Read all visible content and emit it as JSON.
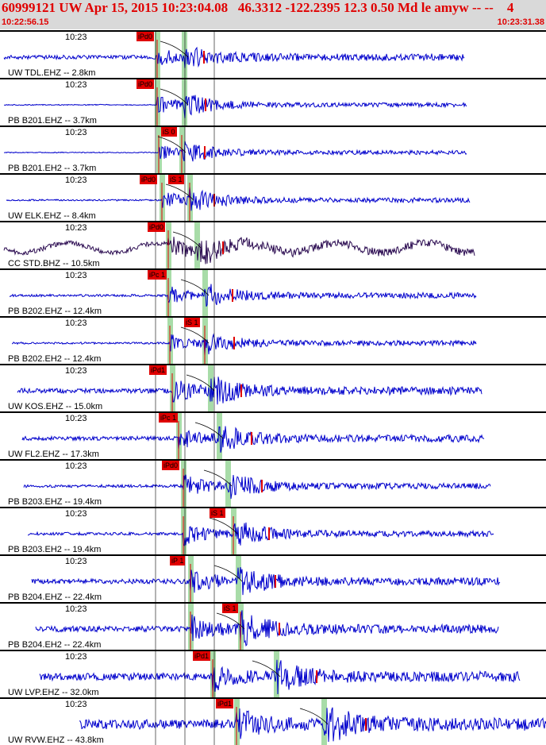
{
  "header": {
    "title": "60999121 UW Apr 15, 2015 10:23:04.08   46.3312 -122.2395 12.3 0.50 Md le amyw -- --    4",
    "time_start": "10:22:56.15",
    "time_end": "10:23:31.38"
  },
  "colors": {
    "trace": "#0000cc",
    "trace_dark": "#2a0a50",
    "pick": "#e00000",
    "band": "#a8dca8",
    "header_text": "#e00000"
  },
  "traces": [
    {
      "label": "UW TDL.EHZ -- 2.8km",
      "time": "10:23",
      "picks": [
        {
          "text": "iPd0"
        }
      ],
      "amp": 8,
      "noise": 2.5
    },
    {
      "label": "PB B201.EHZ -- 3.7km",
      "time": "10:23",
      "picks": [
        {
          "text": "iPd0"
        }
      ],
      "amp": 10,
      "noise": 0.6
    },
    {
      "label": "PB B201.EH2 -- 3.7km",
      "time": "10:23",
      "picks": [
        {
          "text": "iS 0"
        }
      ],
      "amp": 9,
      "noise": 0.6
    },
    {
      "label": "UW ELK.EHZ -- 8.4km",
      "time": "10:23",
      "picks": [
        {
          "text": "iPd0"
        },
        {
          "text": "iS 1"
        }
      ],
      "amp": 10,
      "noise": 1.0
    },
    {
      "label": "CC STD.BHZ -- 10.5km",
      "time": "10:23",
      "picks": [
        {
          "text": "iPd0"
        }
      ],
      "amp": 10,
      "noise": 3.0
    },
    {
      "label": "PB B202.EHZ -- 12.4km",
      "time": "10:23",
      "picks": [
        {
          "text": "iPc 1"
        }
      ],
      "amp": 10,
      "noise": 1.5
    },
    {
      "label": "PB B202.EH2 -- 12.4km",
      "time": "10:23",
      "picks": [
        {
          "text": "iS 1"
        }
      ],
      "amp": 9,
      "noise": 1.2
    },
    {
      "label": "UW KOS.EHZ -- 15.0km",
      "time": "10:23",
      "picks": [
        {
          "text": "iPd1"
        }
      ],
      "amp": 12,
      "noise": 3.0
    },
    {
      "label": "UW FL2.EHZ -- 17.3km",
      "time": "10:23",
      "picks": [
        {
          "text": "iPc 1"
        }
      ],
      "amp": 11,
      "noise": 2.5
    },
    {
      "label": "PB B203.EHZ -- 19.4km",
      "time": "10:23",
      "picks": [
        {
          "text": "iPd0"
        }
      ],
      "amp": 12,
      "noise": 1.8
    },
    {
      "label": "PB B203.EH2 -- 19.4km",
      "time": "10:23",
      "picks": [
        {
          "text": "iS 1"
        }
      ],
      "amp": 12,
      "noise": 1.8
    },
    {
      "label": "PB B204.EHZ -- 22.4km",
      "time": "10:23",
      "picks": [
        {
          "text": "iP 1"
        }
      ],
      "amp": 13,
      "noise": 3.0
    },
    {
      "label": "PB B204.EH2 -- 22.4km",
      "time": "10:23",
      "picks": [
        {
          "text": "iS 1"
        }
      ],
      "amp": 14,
      "noise": 3.5
    },
    {
      "label": "UW LVP.EHZ -- 32.0km",
      "time": "10:23",
      "picks": [
        {
          "text": "iPd1"
        }
      ],
      "amp": 14,
      "noise": 4.5
    },
    {
      "label": "UW RVW.EHZ -- 43.8km",
      "time": "10:23",
      "picks": [
        {
          "text": "iPd1"
        }
      ],
      "amp": 16,
      "noise": 6.0
    }
  ]
}
